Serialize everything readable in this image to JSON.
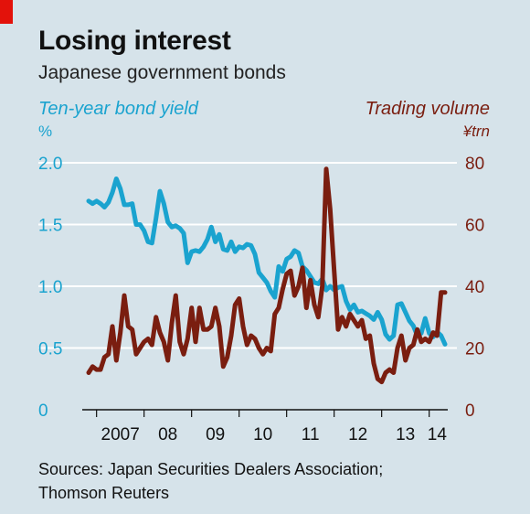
{
  "header": {
    "title": "Losing interest",
    "subtitle": "Japanese government bonds"
  },
  "footer": {
    "source": "Sources: Japan Securities Dealers Association; Thomson Reuters"
  },
  "colors": {
    "yield": "#1aa3cf",
    "volume": "#7a1e10",
    "accent_tag": "#e3120b",
    "background": "#d6e3ea",
    "grid": "#ffffff"
  },
  "chart_data": {
    "type": "line",
    "title": "Losing interest",
    "subtitle": "Japanese government bonds",
    "grid": true,
    "legend": "axis-titles",
    "x_axis": {
      "ticks": [
        "2007",
        "08",
        "09",
        "10",
        "11",
        "12",
        "13",
        "14"
      ],
      "range": [
        "2006-11",
        "2014-05"
      ]
    },
    "y_left": {
      "label": "Ten-year bond yield",
      "unit": "%",
      "ticks": [
        "0",
        "0.5",
        "1.0",
        "1.5",
        "2.0"
      ],
      "range": [
        0,
        2.0
      ]
    },
    "y_right": {
      "label": "Trading volume",
      "unit": "¥trn",
      "ticks": [
        "0",
        "20",
        "40",
        "60",
        "80"
      ],
      "range": [
        0,
        80
      ]
    },
    "series": [
      {
        "name": "Ten-year bond yield",
        "axis": "left",
        "points": [
          [
            "2006-11",
            1.69
          ],
          [
            "2006-12",
            1.67
          ],
          [
            "2007-01",
            1.69
          ],
          [
            "2007-02",
            1.67
          ],
          [
            "2007-03",
            1.64
          ],
          [
            "2007-04",
            1.68
          ],
          [
            "2007-05",
            1.76
          ],
          [
            "2007-06",
            1.87
          ],
          [
            "2007-07",
            1.79
          ],
          [
            "2007-08",
            1.66
          ],
          [
            "2007-09",
            1.66
          ],
          [
            "2007-10",
            1.67
          ],
          [
            "2007-11",
            1.5
          ],
          [
            "2007-12",
            1.5
          ],
          [
            "2008-01",
            1.45
          ],
          [
            "2008-02",
            1.36
          ],
          [
            "2008-03",
            1.35
          ],
          [
            "2008-04",
            1.55
          ],
          [
            "2008-05",
            1.77
          ],
          [
            "2008-06",
            1.67
          ],
          [
            "2008-07",
            1.52
          ],
          [
            "2008-08",
            1.48
          ],
          [
            "2008-09",
            1.49
          ],
          [
            "2008-10",
            1.47
          ],
          [
            "2008-11",
            1.43
          ],
          [
            "2008-12",
            1.19
          ],
          [
            "2009-01",
            1.28
          ],
          [
            "2009-02",
            1.29
          ],
          [
            "2009-03",
            1.28
          ],
          [
            "2009-04",
            1.32
          ],
          [
            "2009-05",
            1.38
          ],
          [
            "2009-06",
            1.48
          ],
          [
            "2009-07",
            1.36
          ],
          [
            "2009-08",
            1.42
          ],
          [
            "2009-09",
            1.3
          ],
          [
            "2009-10",
            1.29
          ],
          [
            "2009-11",
            1.36
          ],
          [
            "2009-12",
            1.28
          ],
          [
            "2010-01",
            1.32
          ],
          [
            "2010-02",
            1.31
          ],
          [
            "2010-03",
            1.34
          ],
          [
            "2010-04",
            1.33
          ],
          [
            "2010-05",
            1.26
          ],
          [
            "2010-06",
            1.11
          ],
          [
            "2010-07",
            1.07
          ],
          [
            "2010-08",
            1.03
          ],
          [
            "2010-09",
            0.96
          ],
          [
            "2010-10",
            0.91
          ],
          [
            "2010-11",
            1.16
          ],
          [
            "2010-12",
            1.12
          ],
          [
            "2011-01",
            1.22
          ],
          [
            "2011-02",
            1.24
          ],
          [
            "2011-03",
            1.29
          ],
          [
            "2011-04",
            1.27
          ],
          [
            "2011-05",
            1.16
          ],
          [
            "2011-06",
            1.13
          ],
          [
            "2011-07",
            1.08
          ],
          [
            "2011-08",
            1.03
          ],
          [
            "2011-09",
            1.02
          ],
          [
            "2011-10",
            1.06
          ],
          [
            "2011-11",
            0.97
          ],
          [
            "2011-12",
            1.0
          ],
          [
            "2012-01",
            0.97
          ],
          [
            "2012-02",
            0.99
          ],
          [
            "2012-03",
            1.0
          ],
          [
            "2012-04",
            0.88
          ],
          [
            "2012-05",
            0.81
          ],
          [
            "2012-06",
            0.85
          ],
          [
            "2012-07",
            0.79
          ],
          [
            "2012-08",
            0.8
          ],
          [
            "2012-09",
            0.78
          ],
          [
            "2012-10",
            0.76
          ],
          [
            "2012-11",
            0.73
          ],
          [
            "2012-12",
            0.79
          ],
          [
            "2013-01",
            0.73
          ],
          [
            "2013-02",
            0.61
          ],
          [
            "2013-03",
            0.57
          ],
          [
            "2013-04",
            0.6
          ],
          [
            "2013-05",
            0.85
          ],
          [
            "2013-06",
            0.86
          ],
          [
            "2013-07",
            0.79
          ],
          [
            "2013-08",
            0.72
          ],
          [
            "2013-09",
            0.68
          ],
          [
            "2013-10",
            0.6
          ],
          [
            "2013-11",
            0.62
          ],
          [
            "2013-12",
            0.74
          ],
          [
            "2014-01",
            0.62
          ],
          [
            "2014-02",
            0.59
          ],
          [
            "2014-03",
            0.63
          ],
          [
            "2014-04",
            0.6
          ],
          [
            "2014-05",
            0.53
          ]
        ]
      },
      {
        "name": "Trading volume",
        "axis": "right",
        "points": [
          [
            "2006-11",
            12
          ],
          [
            "2006-12",
            14
          ],
          [
            "2007-01",
            13
          ],
          [
            "2007-02",
            13
          ],
          [
            "2007-03",
            17
          ],
          [
            "2007-04",
            18
          ],
          [
            "2007-05",
            27
          ],
          [
            "2007-06",
            16
          ],
          [
            "2007-07",
            25
          ],
          [
            "2007-08",
            37
          ],
          [
            "2007-09",
            27
          ],
          [
            "2007-10",
            26
          ],
          [
            "2007-11",
            18
          ],
          [
            "2007-12",
            20
          ],
          [
            "2008-01",
            22
          ],
          [
            "2008-02",
            23
          ],
          [
            "2008-03",
            21
          ],
          [
            "2008-04",
            30
          ],
          [
            "2008-05",
            25
          ],
          [
            "2008-06",
            22
          ],
          [
            "2008-07",
            16
          ],
          [
            "2008-08",
            28
          ],
          [
            "2008-09",
            37
          ],
          [
            "2008-10",
            22
          ],
          [
            "2008-11",
            18
          ],
          [
            "2008-12",
            23
          ],
          [
            "2009-01",
            33
          ],
          [
            "2009-02",
            22
          ],
          [
            "2009-03",
            33
          ],
          [
            "2009-04",
            26
          ],
          [
            "2009-05",
            26
          ],
          [
            "2009-06",
            27
          ],
          [
            "2009-07",
            33
          ],
          [
            "2009-08",
            27
          ],
          [
            "2009-09",
            14
          ],
          [
            "2009-10",
            17
          ],
          [
            "2009-11",
            24
          ],
          [
            "2009-12",
            34
          ],
          [
            "2010-01",
            36
          ],
          [
            "2010-02",
            27
          ],
          [
            "2010-03",
            21
          ],
          [
            "2010-04",
            24
          ],
          [
            "2010-05",
            23
          ],
          [
            "2010-06",
            20
          ],
          [
            "2010-07",
            18
          ],
          [
            "2010-08",
            20
          ],
          [
            "2010-09",
            19
          ],
          [
            "2010-10",
            31
          ],
          [
            "2010-11",
            33
          ],
          [
            "2010-12",
            39
          ],
          [
            "2011-01",
            44
          ],
          [
            "2011-02",
            45
          ],
          [
            "2011-03",
            37
          ],
          [
            "2011-04",
            40
          ],
          [
            "2011-05",
            46
          ],
          [
            "2011-06",
            33
          ],
          [
            "2011-07",
            42
          ],
          [
            "2011-08",
            34
          ],
          [
            "2011-09",
            30
          ],
          [
            "2011-10",
            40
          ],
          [
            "2011-11",
            78
          ],
          [
            "2011-12",
            65
          ],
          [
            "2012-01",
            45
          ],
          [
            "2012-02",
            26
          ],
          [
            "2012-03",
            30
          ],
          [
            "2012-04",
            27
          ],
          [
            "2012-05",
            31
          ],
          [
            "2012-06",
            29
          ],
          [
            "2012-07",
            27
          ],
          [
            "2012-08",
            29
          ],
          [
            "2012-09",
            23
          ],
          [
            "2012-10",
            24
          ],
          [
            "2012-11",
            15
          ],
          [
            "2012-12",
            10
          ],
          [
            "2013-01",
            9
          ],
          [
            "2013-02",
            12
          ],
          [
            "2013-03",
            13
          ],
          [
            "2013-04",
            12
          ],
          [
            "2013-05",
            20
          ],
          [
            "2013-06",
            24
          ],
          [
            "2013-07",
            16
          ],
          [
            "2013-08",
            20
          ],
          [
            "2013-09",
            21
          ],
          [
            "2013-10",
            26
          ],
          [
            "2013-11",
            22
          ],
          [
            "2013-12",
            23
          ],
          [
            "2014-01",
            22
          ],
          [
            "2014-02",
            25
          ],
          [
            "2014-03",
            24
          ],
          [
            "2014-04",
            38
          ],
          [
            "2014-05",
            38
          ]
        ]
      }
    ]
  }
}
